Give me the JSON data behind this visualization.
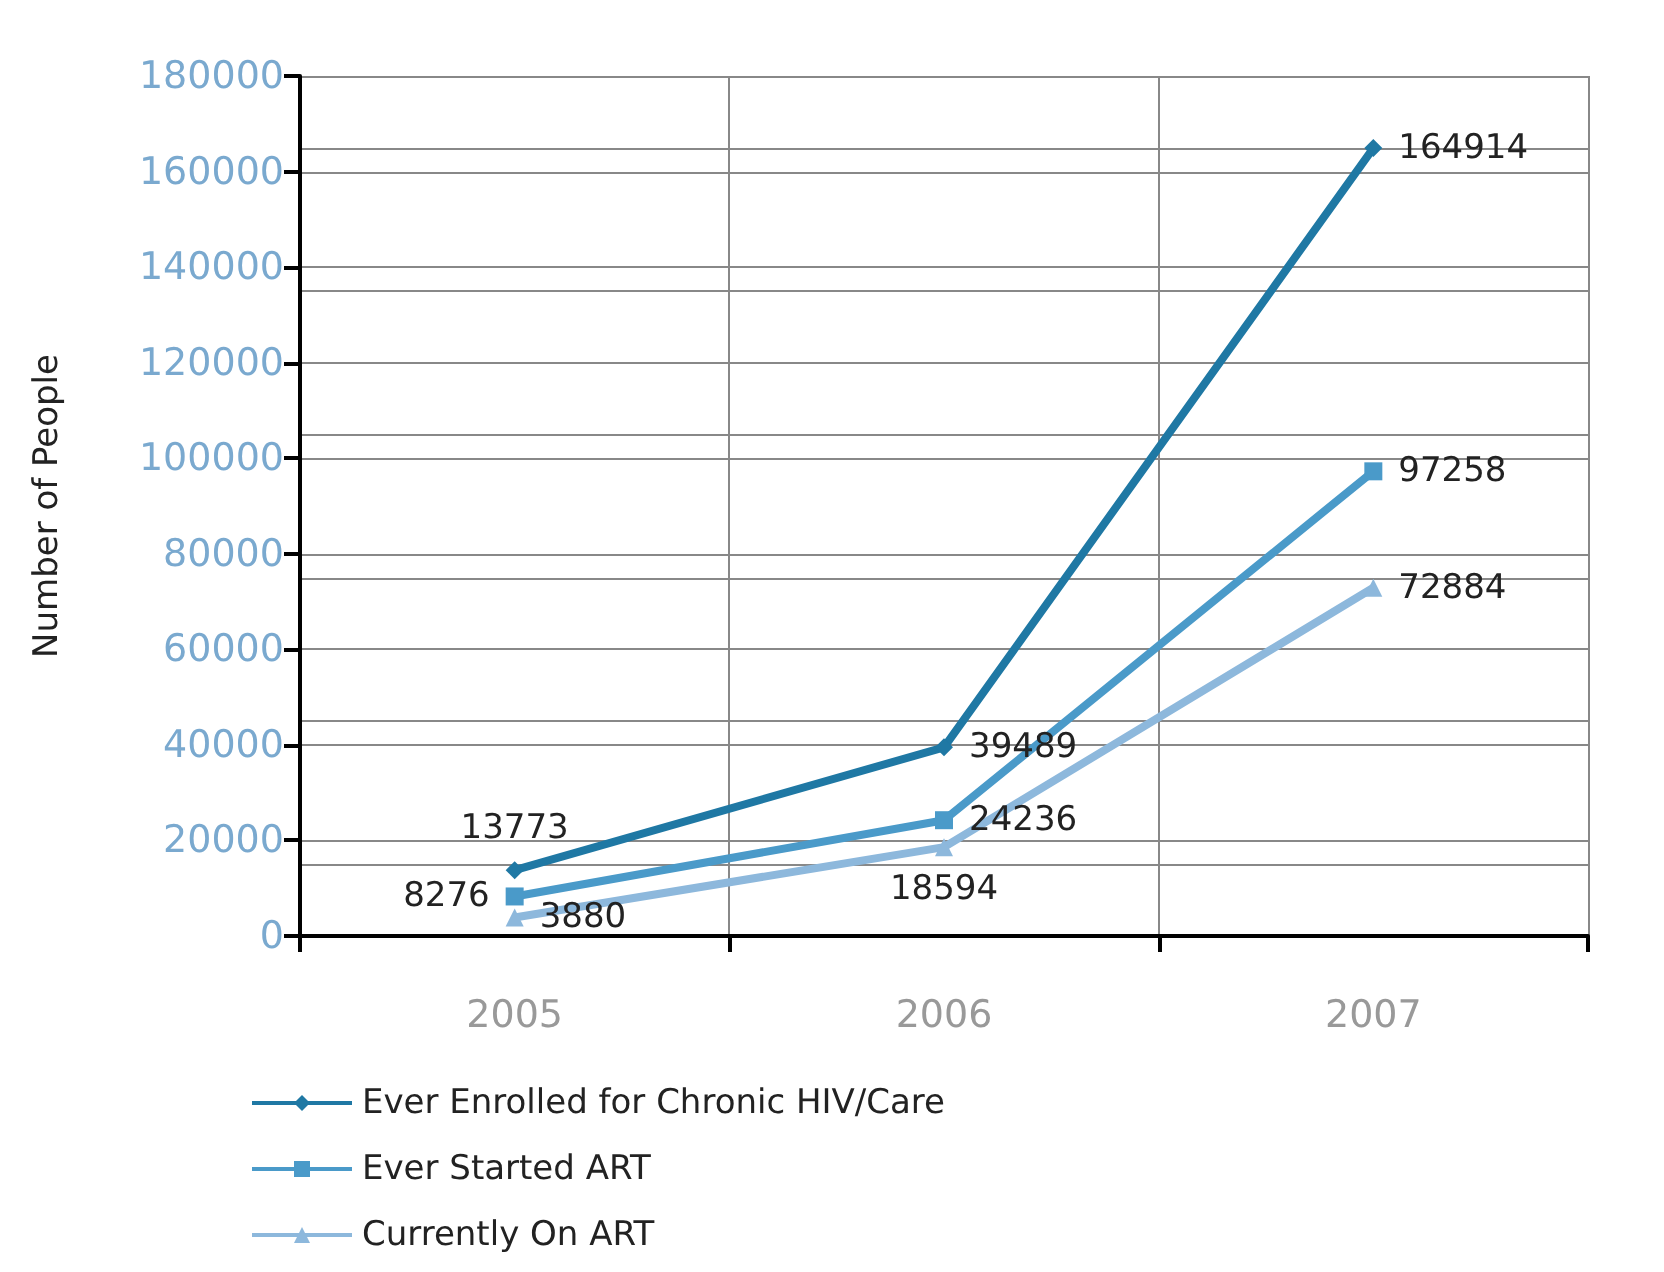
{
  "chart_data": {
    "type": "line",
    "ylabel": "Number of People",
    "categories": [
      "2005",
      "2006",
      "2007"
    ],
    "series": [
      {
        "name": "Ever Enrolled for Chronic HIV/Care",
        "color": "#1f78a4",
        "marker": "diamond",
        "values": [
          13773,
          39489,
          164914
        ]
      },
      {
        "name": "Ever Started ART",
        "color": "#4a9ac9",
        "marker": "square",
        "values": [
          8276,
          24236,
          97258
        ]
      },
      {
        "name": "Currently On ART",
        "color": "#8db8dc",
        "marker": "triangle",
        "values": [
          3880,
          18594,
          72884
        ]
      }
    ],
    "ylim": [
      0,
      180000
    ],
    "yticks": [
      0,
      20000,
      40000,
      60000,
      80000,
      100000,
      120000,
      140000,
      160000,
      180000
    ],
    "grid": true,
    "legend": "bottom",
    "data_labels": true,
    "line_style": "solid"
  }
}
